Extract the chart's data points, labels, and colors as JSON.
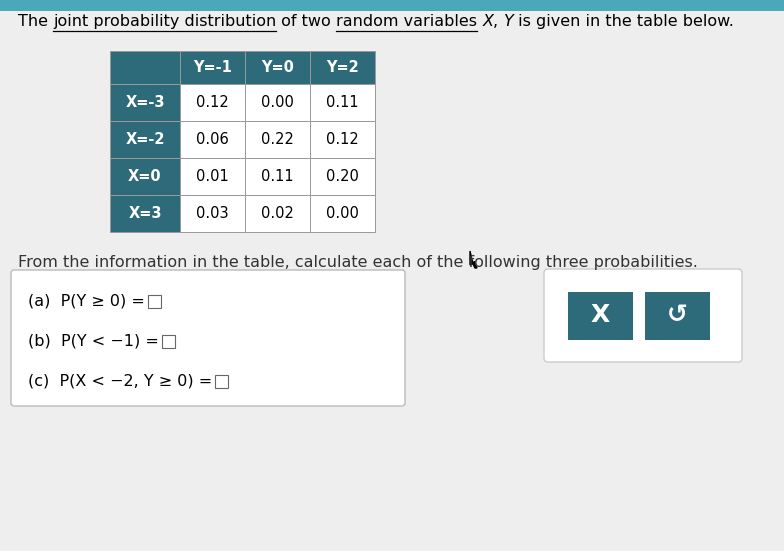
{
  "col_headers": [
    "Y=-1",
    "Y=0",
    "Y=2"
  ],
  "row_headers": [
    "X=-3",
    "X=-2",
    "X=0",
    "X=3"
  ],
  "table_data": [
    [
      0.12,
      0.0,
      0.11
    ],
    [
      0.06,
      0.22,
      0.12
    ],
    [
      0.01,
      0.11,
      0.2
    ],
    [
      0.03,
      0.02,
      0.0
    ]
  ],
  "subtitle": "From the information in the table, calculate each of the following three probabilities.",
  "parts_a": "(a)  P(Y ≥ 0) =",
  "parts_b": "(b)  P(Y < −1) =",
  "parts_c": "(c)  P(X < −2, Y ≥ 0) =",
  "header_bg": "#2d6a7a",
  "header_text_color": "#ffffff",
  "cell_bg": "#ffffff",
  "border_color": "#999999",
  "box_bg": "#ffffff",
  "box_border": "#bbbbbb",
  "button_bg": "#2d6a7a",
  "button_text_color": "#ffffff",
  "bg_color": "#eeeeee",
  "font_size_title": 11.5,
  "font_size_table": 10.5,
  "font_size_parts": 11.5,
  "font_size_subtitle": 11.5
}
